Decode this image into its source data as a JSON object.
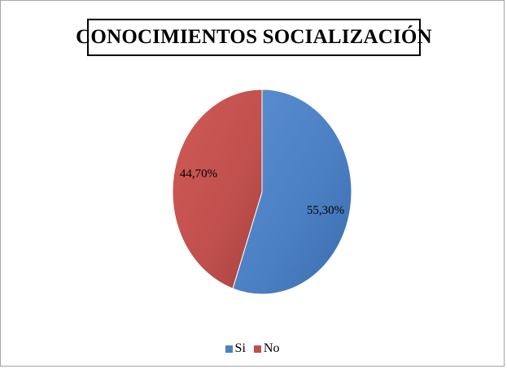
{
  "chart_data": {
    "type": "pie",
    "title": "CONOCIMIENTOS SOCIALIZACIÓN",
    "slices": [
      {
        "name": "Si",
        "value": 55.3,
        "label": "55,30%",
        "color": "#4f81bd"
      },
      {
        "name": "No",
        "value": 44.7,
        "label": "44,70%",
        "color": "#c0504d"
      }
    ],
    "legend": {
      "position": "bottom",
      "entries": [
        "Si",
        "No"
      ]
    }
  }
}
